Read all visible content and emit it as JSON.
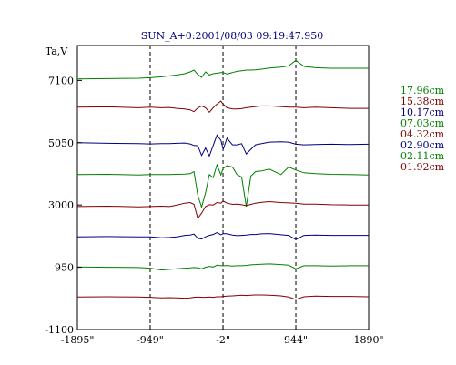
{
  "chart_data": {
    "type": "line",
    "title": "SUN_A+0:2001/08/03 09:19:47.950",
    "ylabel": "Ta,V",
    "xlabel": "",
    "xlim": [
      -1895,
      1890
    ],
    "ylim": [
      -1100,
      8250
    ],
    "x_ticks": [
      {
        "value": -1895,
        "label": "-1895\""
      },
      {
        "value": -949,
        "label": "-949\""
      },
      {
        "value": -2,
        "label": "-2\""
      },
      {
        "value": 944,
        "label": "944\""
      },
      {
        "value": 1890,
        "label": "1890\""
      }
    ],
    "y_ticks": [
      {
        "value": 7100,
        "label": "7100"
      },
      {
        "value": 5050,
        "label": "5050"
      },
      {
        "value": 3000,
        "label": "3000"
      },
      {
        "value": 950,
        "label": "950"
      },
      {
        "value": -1100,
        "label": "-1100"
      }
    ],
    "dashed_verticals": [
      -949,
      -2,
      944
    ],
    "grid": false,
    "legend_position": "right",
    "x": [
      -1895,
      -1500,
      -1100,
      -949,
      -800,
      -700,
      -600,
      -500,
      -430,
      -380,
      -330,
      -280,
      -230,
      -180,
      -130,
      -80,
      -30,
      0,
      50,
      120,
      180,
      240,
      300,
      360,
      420,
      500,
      600,
      750,
      850,
      944,
      1050,
      1200,
      1400,
      1650,
      1890
    ],
    "series": [
      {
        "name": "17.96cm",
        "color": "#008000",
        "values": [
          7150,
          7160,
          7170,
          7190,
          7220,
          7250,
          7280,
          7320,
          7380,
          7440,
          7300,
          7200,
          7380,
          7280,
          7320,
          7340,
          7360,
          7360,
          7310,
          7360,
          7400,
          7420,
          7440,
          7440,
          7450,
          7470,
          7510,
          7540,
          7580,
          7760,
          7560,
          7520,
          7500,
          7500,
          7500
        ]
      },
      {
        "name": "15.38cm",
        "color": "#800000",
        "values": [
          6220,
          6230,
          6200,
          6220,
          6200,
          6210,
          6180,
          6160,
          6130,
          6070,
          6190,
          6260,
          6200,
          6050,
          6200,
          6320,
          6420,
          6320,
          6200,
          6160,
          6160,
          6170,
          6200,
          6220,
          6240,
          6260,
          6260,
          6240,
          6220,
          6220,
          6200,
          6220,
          6200,
          6180,
          6180
        ]
      },
      {
        "name": "10.17cm",
        "color": "#000080",
        "values": [
          5050,
          5030,
          5020,
          5010,
          5020,
          5020,
          5030,
          5040,
          5010,
          4960,
          4950,
          4630,
          4880,
          4610,
          4960,
          5300,
          5130,
          4830,
          5200,
          4980,
          4980,
          5020,
          4680,
          4830,
          4980,
          5020,
          5070,
          5080,
          5070,
          5000,
          4980,
          4990,
          5000,
          4990,
          5000
        ]
      },
      {
        "name": "07.03cm",
        "color": "#008000",
        "values": [
          4000,
          4010,
          3990,
          4000,
          4000,
          4000,
          4010,
          4020,
          4030,
          4100,
          3320,
          2930,
          3400,
          4000,
          3900,
          4320,
          3990,
          4200,
          4290,
          4250,
          4000,
          3920,
          2950,
          3950,
          4100,
          4120,
          4180,
          4000,
          4250,
          4150,
          4060,
          4030,
          4010,
          4000,
          3990
        ]
      },
      {
        "name": "04.32cm",
        "color": "#800000",
        "values": [
          2950,
          2960,
          2940,
          2950,
          2960,
          2950,
          3000,
          3060,
          3080,
          3020,
          2560,
          2730,
          2950,
          3010,
          3000,
          3080,
          3060,
          3130,
          3060,
          3020,
          3030,
          3010,
          2980,
          3020,
          3060,
          3090,
          3110,
          3080,
          3070,
          3060,
          3030,
          3030,
          3010,
          3000,
          3000
        ]
      },
      {
        "name": "02.90cm",
        "color": "#000080",
        "values": [
          1950,
          1960,
          1950,
          1950,
          1920,
          1930,
          1950,
          2000,
          2010,
          2040,
          1900,
          1880,
          1950,
          2000,
          2030,
          2090,
          2020,
          2060,
          2050,
          2010,
          1990,
          2000,
          2010,
          2030,
          2030,
          2050,
          2060,
          2020,
          2000,
          1860,
          2000,
          2010,
          2000,
          2000,
          2000
        ]
      },
      {
        "name": "02.11cm",
        "color": "#008000",
        "values": [
          960,
          950,
          940,
          920,
          860,
          880,
          900,
          920,
          930,
          940,
          930,
          900,
          950,
          980,
          960,
          1020,
          1000,
          1000,
          1010,
          990,
          1000,
          1000,
          1010,
          1030,
          1040,
          1050,
          1060,
          1040,
          1020,
          900,
          1000,
          1000,
          990,
          1000,
          1000
        ]
      },
      {
        "name": "01.92cm",
        "color": "#800000",
        "values": [
          -30,
          -20,
          -30,
          -40,
          -60,
          -50,
          -60,
          -70,
          -60,
          -40,
          -30,
          -40,
          -40,
          -30,
          -40,
          -20,
          -20,
          -10,
          0,
          10,
          20,
          30,
          20,
          30,
          40,
          40,
          30,
          10,
          -30,
          -110,
          -20,
          0,
          -10,
          -10,
          -20
        ]
      }
    ]
  }
}
